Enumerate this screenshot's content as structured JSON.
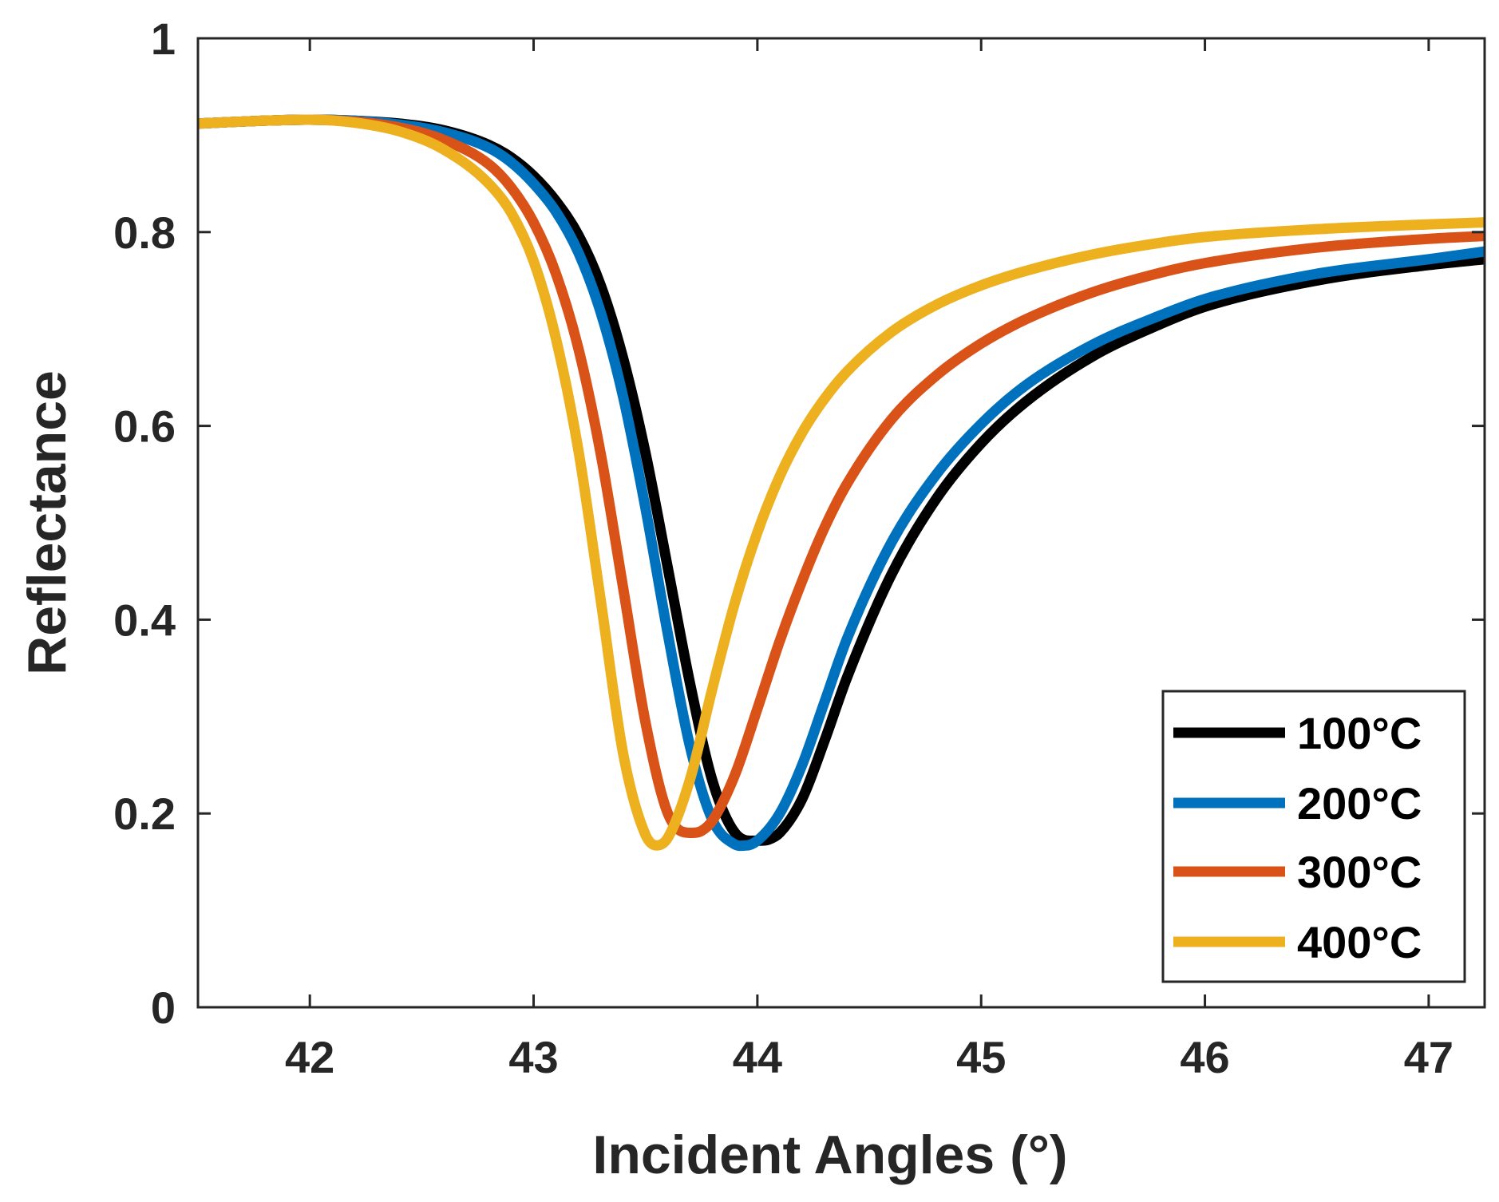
{
  "chart_data": {
    "type": "line",
    "title": "",
    "xlabel": "Incident Angles (°)",
    "ylabel": "Reflectance",
    "xlim": [
      41.5,
      47.25
    ],
    "ylim": [
      0,
      1
    ],
    "xticks": [
      42,
      43,
      44,
      45,
      46,
      47
    ],
    "xtick_labels": [
      "42",
      "43",
      "44",
      "45",
      "46",
      "47"
    ],
    "yticks": [
      0,
      0.2,
      0.4,
      0.6,
      0.8,
      1
    ],
    "ytick_labels": [
      "0",
      "0.2",
      "0.4",
      "0.6",
      "0.8",
      "1"
    ],
    "grid": false,
    "legend_position": "bottom-right",
    "series": [
      {
        "name": "100°C",
        "color": "#000000",
        "x": [
          41.5,
          41.8,
          42.0,
          42.2,
          42.4,
          42.6,
          42.8,
          42.9,
          43.0,
          43.1,
          43.2,
          43.3,
          43.4,
          43.5,
          43.6,
          43.7,
          43.8,
          43.9,
          44.0,
          44.05,
          44.1,
          44.2,
          44.3,
          44.4,
          44.6,
          44.8,
          45.0,
          45.2,
          45.5,
          45.8,
          46.0,
          46.5,
          47.0,
          47.25
        ],
        "values": [
          0.912,
          0.915,
          0.916,
          0.915,
          0.912,
          0.905,
          0.89,
          0.877,
          0.858,
          0.832,
          0.797,
          0.745,
          0.67,
          0.572,
          0.453,
          0.333,
          0.233,
          0.18,
          0.172,
          0.173,
          0.18,
          0.215,
          0.275,
          0.34,
          0.447,
          0.525,
          0.582,
          0.625,
          0.672,
          0.705,
          0.723,
          0.75,
          0.766,
          0.772
        ]
      },
      {
        "name": "200°C",
        "color": "#0072BD",
        "x": [
          41.5,
          41.8,
          42.0,
          42.2,
          42.4,
          42.6,
          42.8,
          42.9,
          43.0,
          43.1,
          43.2,
          43.3,
          43.4,
          43.5,
          43.6,
          43.7,
          43.8,
          43.9,
          43.95,
          44.0,
          44.1,
          44.2,
          44.3,
          44.4,
          44.6,
          44.8,
          45.0,
          45.2,
          45.5,
          45.8,
          46.0,
          46.5,
          47.0,
          47.25
        ],
        "values": [
          0.912,
          0.915,
          0.916,
          0.915,
          0.911,
          0.903,
          0.887,
          0.872,
          0.85,
          0.821,
          0.779,
          0.717,
          0.63,
          0.515,
          0.385,
          0.268,
          0.193,
          0.168,
          0.167,
          0.172,
          0.2,
          0.25,
          0.315,
          0.38,
          0.48,
          0.55,
          0.602,
          0.642,
          0.684,
          0.714,
          0.731,
          0.757,
          0.772,
          0.78
        ]
      },
      {
        "name": "300°C",
        "color": "#D95319",
        "x": [
          41.5,
          41.8,
          42.0,
          42.2,
          42.4,
          42.6,
          42.8,
          42.9,
          43.0,
          43.1,
          43.2,
          43.3,
          43.4,
          43.5,
          43.6,
          43.7,
          43.75,
          43.8,
          43.9,
          44.0,
          44.1,
          44.2,
          44.3,
          44.4,
          44.6,
          44.8,
          45.0,
          45.2,
          45.5,
          45.8,
          46.0,
          46.5,
          47.0,
          47.25
        ],
        "values": [
          0.912,
          0.915,
          0.916,
          0.914,
          0.908,
          0.895,
          0.87,
          0.846,
          0.81,
          0.757,
          0.68,
          0.571,
          0.433,
          0.294,
          0.2,
          0.18,
          0.182,
          0.193,
          0.24,
          0.308,
          0.378,
          0.44,
          0.495,
          0.54,
          0.607,
          0.652,
          0.685,
          0.71,
          0.738,
          0.758,
          0.768,
          0.784,
          0.793,
          0.796
        ]
      },
      {
        "name": "400°C",
        "color": "#EDB120",
        "x": [
          41.5,
          41.8,
          42.0,
          42.2,
          42.4,
          42.6,
          42.8,
          42.9,
          43.0,
          43.1,
          43.2,
          43.3,
          43.4,
          43.5,
          43.55,
          43.6,
          43.7,
          43.8,
          43.9,
          44.0,
          44.1,
          44.2,
          44.3,
          44.4,
          44.6,
          44.8,
          45.0,
          45.2,
          45.5,
          45.8,
          46.0,
          46.5,
          47.0,
          47.25
        ],
        "values": [
          0.912,
          0.915,
          0.916,
          0.913,
          0.904,
          0.885,
          0.85,
          0.82,
          0.77,
          0.69,
          0.575,
          0.42,
          0.262,
          0.178,
          0.167,
          0.175,
          0.236,
          0.33,
          0.418,
          0.49,
          0.548,
          0.593,
          0.628,
          0.656,
          0.697,
          0.725,
          0.745,
          0.76,
          0.777,
          0.789,
          0.795,
          0.803,
          0.808,
          0.81
        ]
      }
    ]
  }
}
